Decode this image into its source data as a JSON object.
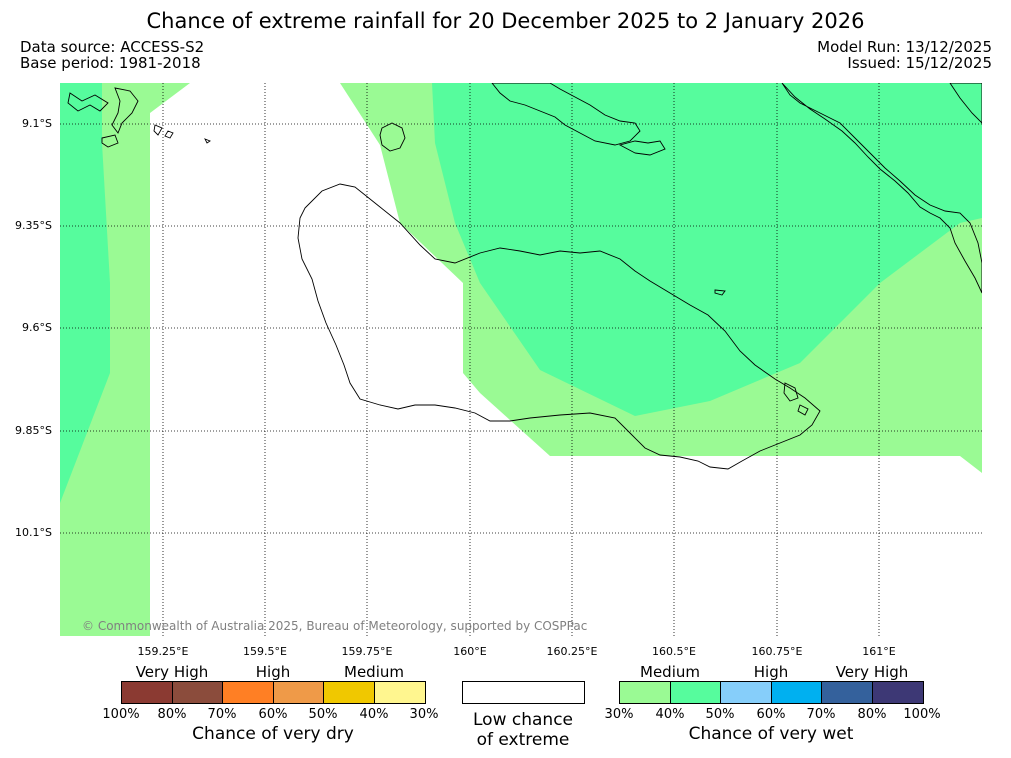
{
  "title": "Chance of extreme rainfall for 20 December 2025 to 2 January 2026",
  "data_source": "Data source: ACCESS-S2",
  "base_period": "Base period: 1981-2018",
  "model_run": "Model Run: 13/12/2025",
  "issued": "Issued: 15/12/2025",
  "copyright": "© Commonwealth of Australia 2025, Bureau of Meteorology, supported by COSPPac",
  "lat_labels": [
    "9.1°S",
    "9.35°S",
    "9.6°S",
    "9.85°S",
    "10.1°S"
  ],
  "lon_labels": [
    "159.25°E",
    "159.5°E",
    "159.75°E",
    "160°E",
    "160.25°E",
    "160.5°E",
    "160.75°E",
    "161°E"
  ],
  "legend": {
    "dry": {
      "categories": [
        "Very High",
        "High",
        "Medium"
      ],
      "percents": [
        "100%",
        "80%",
        "70%",
        "60%",
        "50%",
        "40%",
        "30%"
      ],
      "colors": [
        "#8b3a32",
        "#8b4c3c",
        "#ff7f24",
        "#ef9a48",
        "#f0c800",
        "#fff68f"
      ],
      "caption": "Chance of very dry"
    },
    "neutral": {
      "caption_line1": "Low chance",
      "caption_line2": "of extreme"
    },
    "wet": {
      "categories": [
        "Medium",
        "High",
        "Very High"
      ],
      "percents": [
        "30%",
        "40%",
        "50%",
        "60%",
        "70%",
        "80%",
        "100%"
      ],
      "colors": [
        "#9afa94",
        "#56fc9d",
        "#86cefa",
        "#00b0f0",
        "#34619c",
        "#3d3875"
      ],
      "caption": "Chance of very wet"
    }
  },
  "map_colors": {
    "medium_wet_30_40": "#9afa94",
    "medium_wet_40_50": "#56fc9d",
    "low_chance": "#ffffff",
    "coastline": "#000000",
    "grid": "#000000"
  }
}
